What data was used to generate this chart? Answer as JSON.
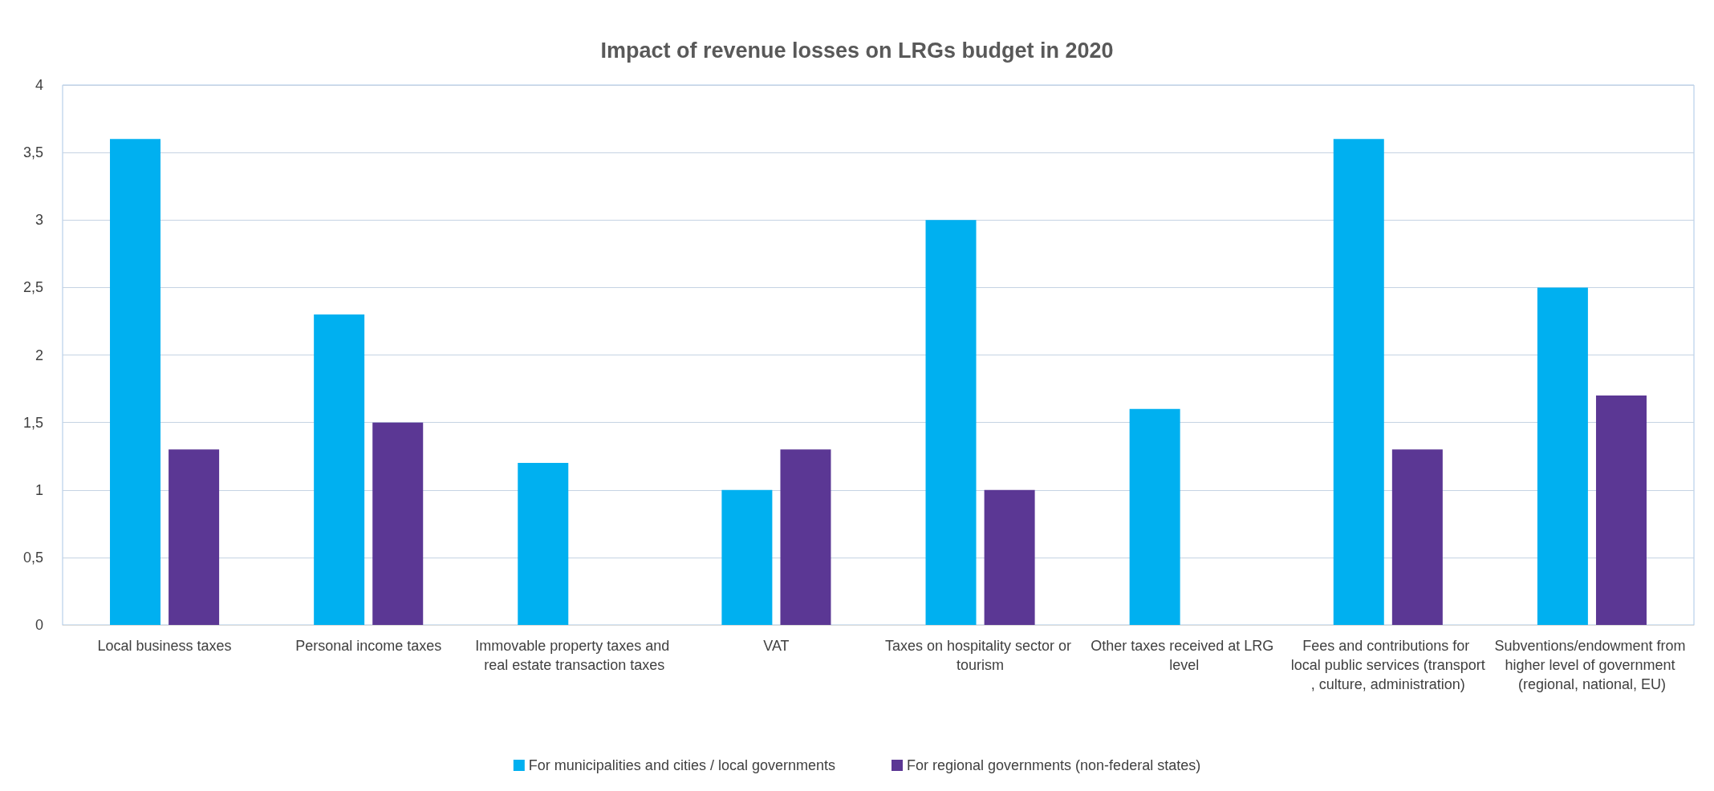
{
  "chart_data": {
    "type": "bar",
    "title": "Impact of revenue losses on LRGs budget in 2020",
    "categories": [
      "Local business taxes",
      "Personal income taxes",
      "Immovable property taxes and real estate transaction taxes",
      "VAT",
      "Taxes on hospitality sector or tourism",
      "Other taxes received at LRG level",
      "Fees and contributions for local public services (transport, culture, administration)",
      "Subventions/endowment from higher level of government (regional, national, EU)"
    ],
    "series": [
      {
        "name": "For municipalities and cities / local governments",
        "color": "#00b0f0",
        "values": [
          3.6,
          2.3,
          1.2,
          1.0,
          3.0,
          1.6,
          3.6,
          2.5
        ]
      },
      {
        "name": "For regional governments (non-federal states)",
        "color": "#5b3794",
        "values": [
          1.3,
          1.5,
          null,
          1.3,
          1.0,
          null,
          1.3,
          1.7
        ]
      }
    ],
    "ylim": [
      0,
      4
    ],
    "yticks": [
      0,
      {
        "value": 0.5,
        "label": "0,5"
      },
      1,
      {
        "value": 1.5,
        "label": "1,5"
      },
      2,
      {
        "value": 2.5,
        "label": "2,5"
      },
      3,
      {
        "value": 3.5,
        "label": "3,5"
      },
      4
    ],
    "grid": "y",
    "legend": "bottom"
  }
}
